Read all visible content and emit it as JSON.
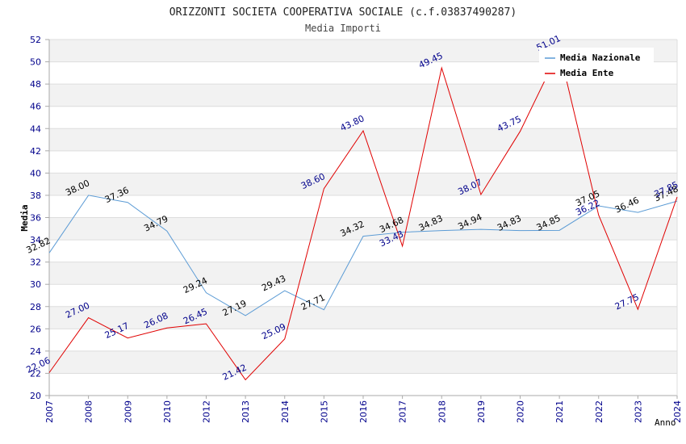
{
  "chart_data": {
    "type": "line",
    "title": "ORIZZONTI SOCIETA COOPERATIVA SOCIALE (c.f.03837490287)",
    "subtitle": "Media Importi",
    "xlabel": "Anno",
    "ylabel": "Media",
    "ylim": [
      20,
      52
    ],
    "yticks": [
      "20",
      "22",
      "24",
      "26",
      "28",
      "30",
      "32",
      "34",
      "36",
      "38",
      "40",
      "42",
      "44",
      "46",
      "48",
      "50",
      "52"
    ],
    "categories": [
      "2007",
      "2008",
      "2009",
      "2010",
      "2012",
      "2013",
      "2014",
      "2015",
      "2016",
      "2017",
      "2018",
      "2019",
      "2020",
      "2021",
      "2022",
      "2023",
      "2024"
    ],
    "grid": true,
    "legend_position": "top-right",
    "series": [
      {
        "name": "Media Nazionale",
        "color": "#5b9bd5",
        "label_color": "#000000",
        "values": [
          32.82,
          38.0,
          37.36,
          34.79,
          29.24,
          27.19,
          29.43,
          27.71,
          34.32,
          34.68,
          34.83,
          34.94,
          34.83,
          34.85,
          37.05,
          36.46,
          37.48
        ],
        "labels": [
          "32.82",
          "38.00",
          "37.36",
          "34.79",
          "29.24",
          "27.19",
          "29.43",
          "27.71",
          "34.32",
          "34.68",
          "34.83",
          "34.94",
          "34.83",
          "34.85",
          "37.05",
          "36.46",
          "37.48"
        ]
      },
      {
        "name": "Media Ente",
        "color": "#e00000",
        "label_color": "#00008b",
        "values": [
          22.06,
          27.0,
          25.17,
          26.08,
          26.45,
          21.42,
          25.09,
          38.6,
          43.8,
          33.43,
          49.45,
          38.07,
          43.75,
          51.01,
          36.22,
          27.75,
          37.85
        ],
        "labels": [
          "22.06",
          "27.00",
          "25.17",
          "26.08",
          "26.45",
          "21.42",
          "25.09",
          "38.60",
          "43.80",
          "33.43",
          "49.45",
          "38.07",
          "43.75",
          "51.01",
          "36.22",
          "27.75",
          "37.85"
        ]
      }
    ]
  }
}
